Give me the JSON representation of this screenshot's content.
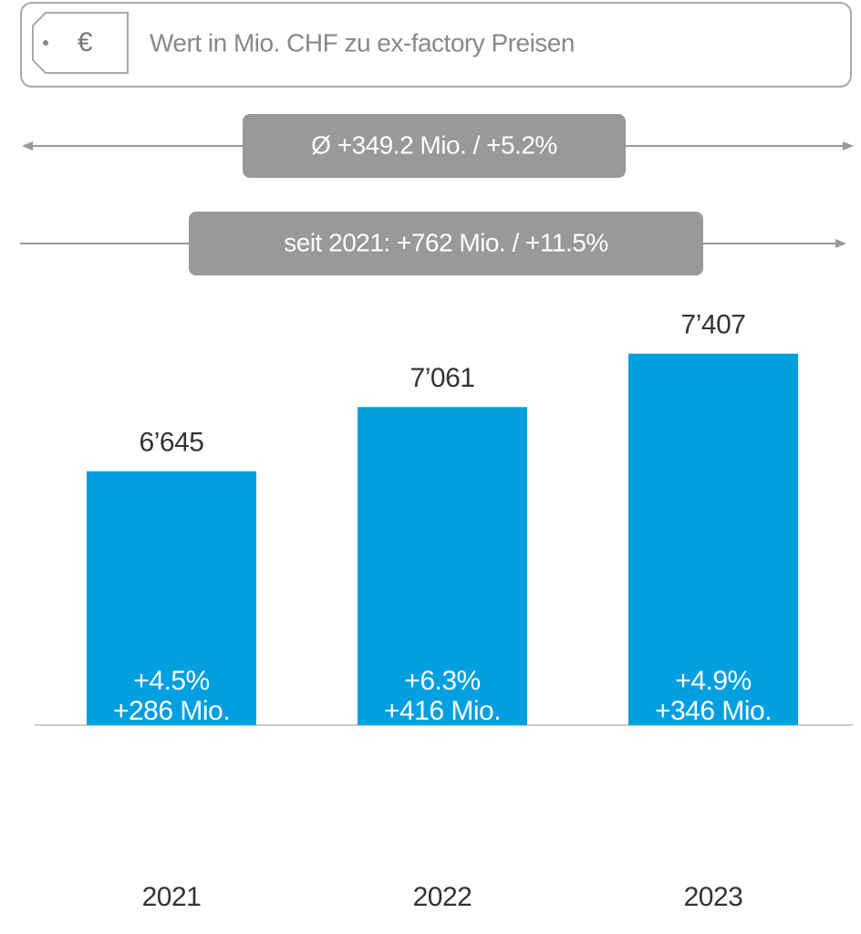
{
  "chart_data": {
    "type": "bar",
    "header": {
      "icon": "€",
      "text": "Wert in Mio. CHF zu ex-factory Preisen"
    },
    "annotations": [
      "Ø +349.2 Mio. / +5.2%",
      "seit 2021: +762 Mio. / +11.5%"
    ],
    "categories": [
      "2021",
      "2022",
      "2023"
    ],
    "values": [
      6645,
      7061,
      7407
    ],
    "value_labels": [
      "6’645",
      "7’061",
      "7’407"
    ],
    "growth_labels": [
      "+4.5%",
      "+6.3%",
      "+4.9%"
    ],
    "delta_labels": [
      "+286 Mio.",
      "+416 Mio.",
      "+346 Mio."
    ],
    "color": "#009fe0",
    "ylim": [
      5000,
      7500
    ]
  }
}
